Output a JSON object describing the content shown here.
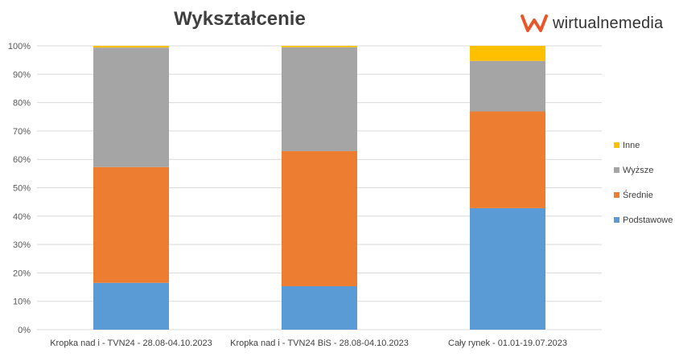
{
  "chart_data": {
    "type": "bar",
    "stacked": true,
    "title": "Wykształcenie",
    "categories": [
      "Kropka nad i - TVN24 - 28.08-04.10.2023",
      "Kropka nad i - TVN24 BiS - 28.08-04.10.2023",
      "Cały rynek - 01.01-19.07.2023"
    ],
    "series": [
      {
        "name": "Podstawowe",
        "color": "#5B9BD5",
        "values": [
          16.5,
          15.3,
          42.8
        ]
      },
      {
        "name": "Średnie",
        "color": "#ED7D31",
        "values": [
          40.8,
          47.6,
          34.1
        ]
      },
      {
        "name": "Wyższe",
        "color": "#A5A5A5",
        "values": [
          42.1,
          36.6,
          17.8
        ]
      },
      {
        "name": "Inne",
        "color": "#FFC000",
        "values": [
          0.6,
          0.5,
          5.3
        ]
      }
    ],
    "ylim": [
      0,
      100
    ],
    "yticks": [
      "0%",
      "10%",
      "20%",
      "30%",
      "40%",
      "50%",
      "60%",
      "70%",
      "80%",
      "90%",
      "100%"
    ],
    "grid": true,
    "legend_position": "right"
  },
  "logo": {
    "text": "wirtualnemedia",
    "color": "#E8572A"
  }
}
